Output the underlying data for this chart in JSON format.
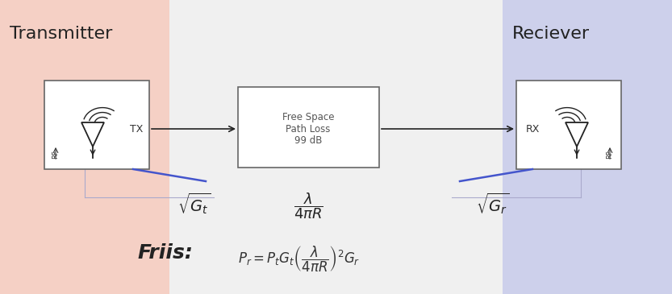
{
  "transmitter_label": "Transmitter",
  "receiver_label": "Reciever",
  "tx_label": "TX",
  "rx_label": "RX",
  "path_loss_line1": "Free Space",
  "path_loss_line2": "Path Loss",
  "path_loss_line3": "99 dB",
  "tx_bg_color": "#f5d0c5",
  "rx_bg_color": "#cdd0eb",
  "fig_bg_color": "#f0f0f0",
  "box_edge_color": "#666666",
  "arrow_color": "#222222",
  "blue_line_color": "#4455cc",
  "label_sqrt_gt": "$\\sqrt{G_t}$",
  "label_lambda": "$\\dfrac{\\lambda}{4\\pi R}$",
  "label_sqrt_gr": "$\\sqrt{G_r}$",
  "friis_label": "Friis:",
  "friis_eq": "$P_r = P_t G_t \\left(\\dfrac{\\lambda}{4\\pi R}\\right)^2 G_r$",
  "figsize": [
    8.33,
    3.65
  ],
  "dpi": 100
}
